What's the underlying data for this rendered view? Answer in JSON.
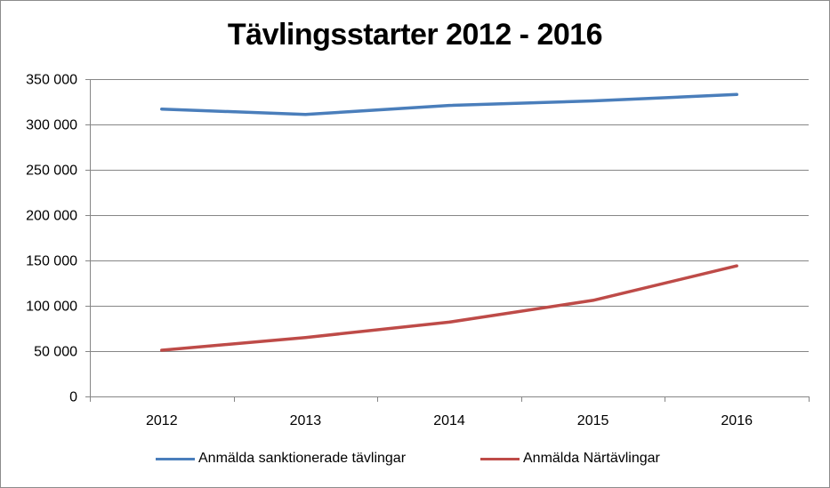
{
  "chart_data": {
    "type": "line",
    "title": "Tävlingsstarter 2012 - 2016",
    "categories": [
      "2012",
      "2013",
      "2014",
      "2015",
      "2016"
    ],
    "series": [
      {
        "name": "Anmälda sanktionerade tävlingar",
        "color": "#4a7ebb",
        "values": [
          317000,
          311000,
          321000,
          326000,
          333000
        ]
      },
      {
        "name": "Anmälda Närtävlingar",
        "color": "#be4b48",
        "values": [
          51000,
          65000,
          82000,
          106000,
          144000
        ]
      }
    ],
    "ylim": [
      0,
      350000
    ],
    "yticks": [
      0,
      50000,
      100000,
      150000,
      200000,
      250000,
      300000,
      350000
    ],
    "ytick_labels": [
      "0",
      "50 000",
      "100 000",
      "150 000",
      "200 000",
      "250 000",
      "300 000",
      "350 000"
    ],
    "xlabel": "",
    "ylabel": "",
    "grid": true,
    "legend_position": "bottom"
  }
}
